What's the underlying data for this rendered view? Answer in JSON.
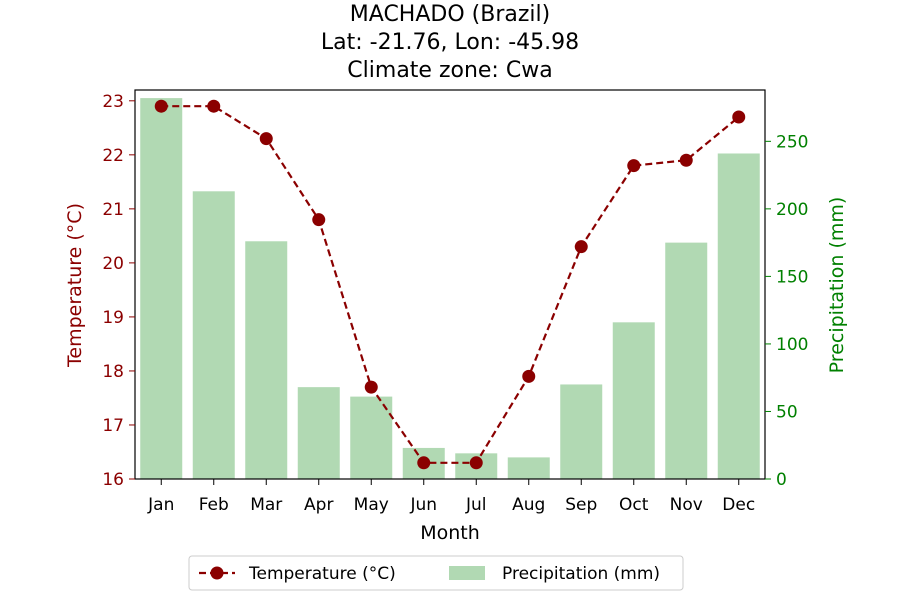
{
  "chart_data": {
    "type": "bar+line",
    "title_lines": [
      "MACHADO (Brazil)",
      "Lat: -21.76, Lon: -45.98",
      "Climate zone: Cwa"
    ],
    "xlabel": "Month",
    "ylabel_left": "Temperature (°C)",
    "ylabel_right": "Precipitation (mm)",
    "categories": [
      "Jan",
      "Feb",
      "Mar",
      "Apr",
      "May",
      "Jun",
      "Jul",
      "Aug",
      "Sep",
      "Oct",
      "Nov",
      "Dec"
    ],
    "left_axis": {
      "ylim": [
        16,
        23.2
      ],
      "ticks": [
        16,
        17,
        18,
        19,
        20,
        21,
        22,
        23
      ]
    },
    "right_axis": {
      "ylim": [
        0,
        288
      ],
      "ticks": [
        0,
        50,
        100,
        150,
        200,
        250
      ]
    },
    "series": [
      {
        "name": "Temperature (°C)",
        "type": "line",
        "axis": "left",
        "color": "#8b0000",
        "values": [
          22.9,
          22.9,
          22.3,
          20.8,
          17.7,
          16.3,
          16.3,
          17.9,
          20.3,
          21.8,
          21.9,
          22.7
        ]
      },
      {
        "name": "Precipitation (mm)",
        "type": "bar",
        "axis": "right",
        "color": "#b1d9b3",
        "values": [
          282,
          213,
          176,
          68,
          61,
          23,
          19,
          16,
          70,
          116,
          175,
          241
        ]
      }
    ],
    "legend": {
      "placement": "bottom-center"
    },
    "grid": false,
    "colors": {
      "left_axis": "#8b0000",
      "right_axis": "#008000",
      "text": "#000000"
    }
  }
}
